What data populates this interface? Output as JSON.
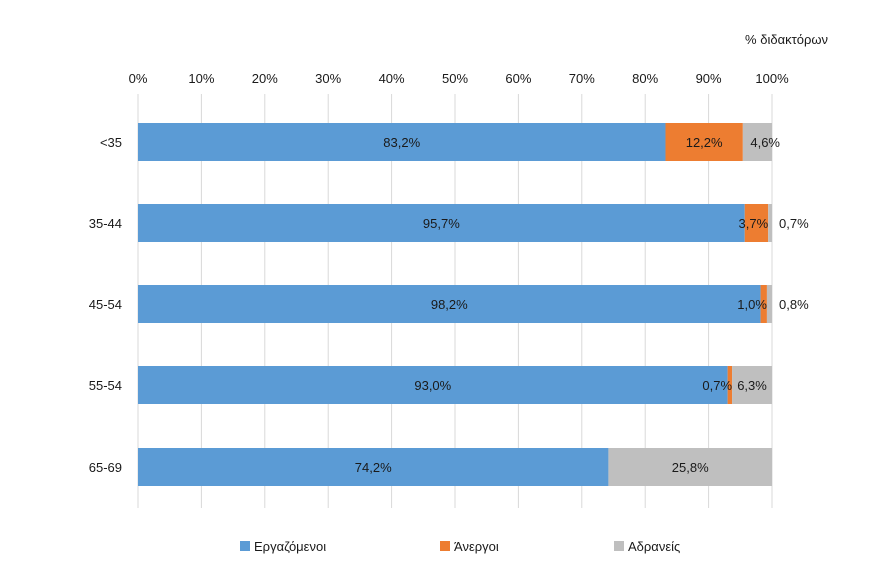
{
  "chart_data": {
    "type": "bar",
    "orientation": "horizontal",
    "stacked": true,
    "unit_label": "% διδακτόρων",
    "categories": [
      "<35",
      "35-44",
      "45-54",
      "55-54",
      "65-69"
    ],
    "series": [
      {
        "name": "Εργαζόμενοι",
        "color": "#5b9bd5",
        "values": [
          83.2,
          95.7,
          98.2,
          93.0,
          74.2
        ],
        "labels": [
          "83,2%",
          "95,7%",
          "98,2%",
          "93,0%",
          "74,2%"
        ]
      },
      {
        "name": "Άνεργοι",
        "color": "#ed7d31",
        "values": [
          12.2,
          3.7,
          1.0,
          0.7,
          0
        ],
        "labels": [
          "12,2%",
          "3,7%",
          "1,0%",
          "0,7%",
          ""
        ]
      },
      {
        "name": "Αδρανείς",
        "color": "#bfbfbf",
        "values": [
          4.6,
          0.7,
          0.8,
          6.3,
          25.8
        ],
        "labels": [
          "4,6%",
          "0,7%",
          "0,8%",
          "6,3%",
          "25,8%"
        ]
      }
    ],
    "x_ticks": [
      "0%",
      "10%",
      "20%",
      "30%",
      "40%",
      "50%",
      "60%",
      "70%",
      "80%",
      "90%",
      "100%"
    ],
    "xlim": [
      0,
      100
    ],
    "axis_position": "top",
    "grid": true,
    "legend_position": "bottom"
  }
}
